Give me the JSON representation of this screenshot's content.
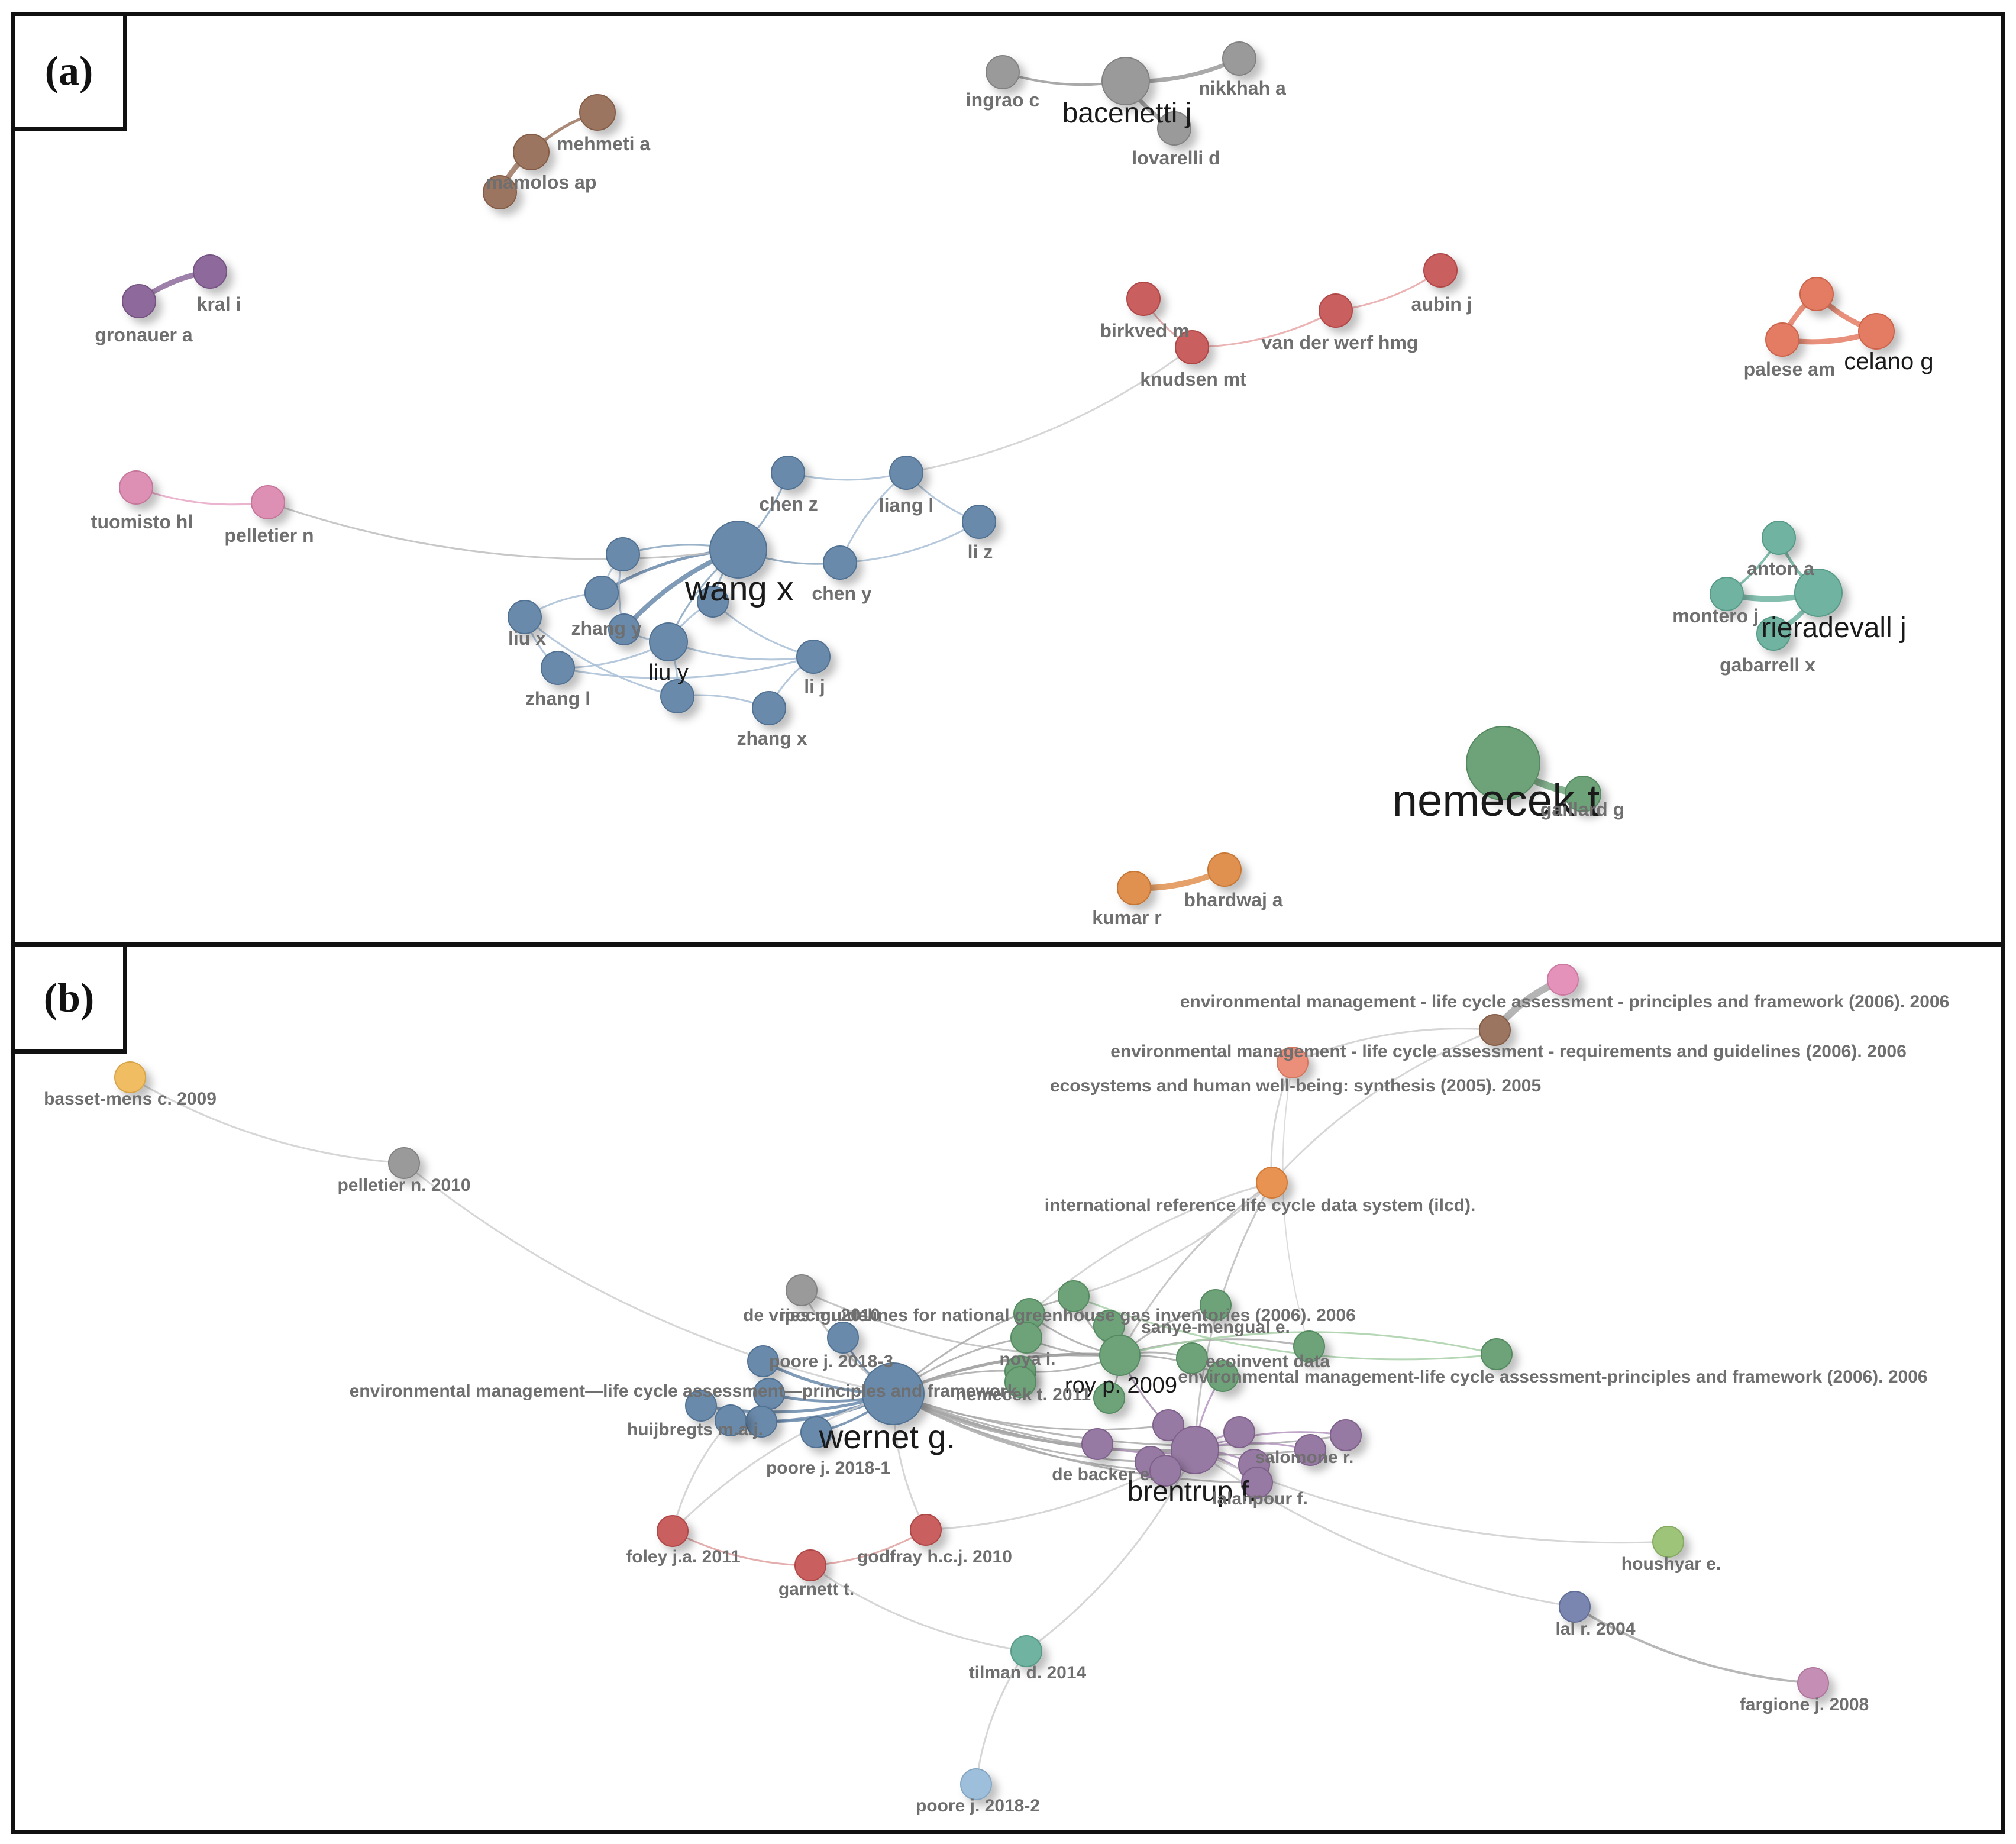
{
  "panels": [
    {
      "id": "a",
      "tag": "(a)",
      "nodes": [
        {
          "id": "ingrao",
          "label": "ingrao c",
          "color": "#9a9a9a"
        },
        {
          "id": "bacenetti",
          "label": "bacenetti j",
          "color": "#9a9a9a"
        },
        {
          "id": "nikkhah",
          "label": "nikkhah a",
          "color": "#9a9a9a"
        },
        {
          "id": "lovarelli",
          "label": "lovarelli d",
          "color": "#9a9a9a"
        },
        {
          "id": "mehmeti",
          "label": "mehmeti a",
          "color": "#9c7560"
        },
        {
          "id": "mamolos",
          "label": "mamolos ap",
          "color": "#9c7560"
        },
        {
          "id": "mamolos2",
          "label": "",
          "color": "#9c7560"
        },
        {
          "id": "kral",
          "label": "kral i",
          "color": "#8d6b9b"
        },
        {
          "id": "gronauer",
          "label": "gronauer a",
          "color": "#8d6b9b"
        },
        {
          "id": "birkved",
          "label": "birkved m",
          "color": "#c95f5f"
        },
        {
          "id": "aubin",
          "label": "aubin j",
          "color": "#c95f5f"
        },
        {
          "id": "vanderwerf",
          "label": "van der werf hmg",
          "color": "#c95f5f"
        },
        {
          "id": "knudsen",
          "label": "knudsen mt",
          "color": "#c95f5f"
        },
        {
          "id": "celano_a",
          "label": "",
          "color": "#e47c64"
        },
        {
          "id": "palese",
          "label": "palese am",
          "color": "#e47c64"
        },
        {
          "id": "celano",
          "label": "celano g",
          "color": "#e47c64"
        },
        {
          "id": "tuomisto",
          "label": "tuomisto hl",
          "color": "#de8fb4"
        },
        {
          "id": "pelletier",
          "label": "pelletier n",
          "color": "#de8fb4"
        },
        {
          "id": "chenz",
          "label": "chen z",
          "color": "#6a8aab"
        },
        {
          "id": "liangl",
          "label": "liang l",
          "color": "#6a8aab"
        },
        {
          "id": "liz",
          "label": "li z",
          "color": "#6a8aab"
        },
        {
          "id": "wangx",
          "label": "wang x",
          "color": "#6a8aab"
        },
        {
          "id": "cheny",
          "label": "chen y",
          "color": "#6a8aab"
        },
        {
          "id": "b1",
          "label": "",
          "color": "#6a8aab"
        },
        {
          "id": "b2",
          "label": "",
          "color": "#6a8aab"
        },
        {
          "id": "zhangy",
          "label": "zhang y",
          "color": "#6a8aab"
        },
        {
          "id": "b3",
          "label": "",
          "color": "#6a8aab"
        },
        {
          "id": "liux",
          "label": "liu x",
          "color": "#6a8aab"
        },
        {
          "id": "liuy",
          "label": "liu y",
          "color": "#6a8aab"
        },
        {
          "id": "lij",
          "label": "li j",
          "color": "#6a8aab"
        },
        {
          "id": "zhangl",
          "label": "zhang l",
          "color": "#6a8aab"
        },
        {
          "id": "b4",
          "label": "",
          "color": "#6a8aab"
        },
        {
          "id": "zhangx",
          "label": "zhang x",
          "color": "#6a8aab"
        },
        {
          "id": "anton",
          "label": "anton a",
          "color": "#6fb3a0"
        },
        {
          "id": "montero",
          "label": "montero j",
          "color": "#6fb3a0"
        },
        {
          "id": "rieradevall",
          "label": "rieradevall j",
          "color": "#6fb3a0"
        },
        {
          "id": "gabarrell",
          "label": "gabarrell x",
          "color": "#6fb3a0"
        },
        {
          "id": "nemecek",
          "label": "nemecek t",
          "color": "#6ea37a"
        },
        {
          "id": "gaillard",
          "label": "gaillard g",
          "color": "#6ea37a"
        },
        {
          "id": "bhardwaj",
          "label": "bhardwaj a",
          "color": "#e0904f"
        },
        {
          "id": "kumar",
          "label": "kumar r",
          "color": "#e0904f"
        }
      ]
    },
    {
      "id": "b",
      "tag": "(b)",
      "nodes": [
        {
          "id": "iso14040",
          "label": "environmental management - life cycle assessment - principles and framework (2006). 2006",
          "color": "#e592bb"
        },
        {
          "id": "iso14044",
          "label": "environmental management - life cycle assessment - requirements and guidelines (2006). 2006",
          "color": "#9c7560"
        },
        {
          "id": "mea",
          "label": "ecosystems and human well-being: synthesis (2005). 2005",
          "color": "#ec8f7a"
        },
        {
          "id": "bassetmens",
          "label": "basset-mens c. 2009",
          "color": "#f0bd63"
        },
        {
          "id": "pelletier2010",
          "label": "pelletier n. 2010",
          "color": "#9a9a9a"
        },
        {
          "id": "ilcd",
          "label": "international reference life cycle data system (ilcd).",
          "color": "#e89351"
        },
        {
          "id": "devries",
          "label": "de vries m. 2010",
          "color": "#9a9a9a"
        },
        {
          "id": "ipcc",
          "label": "ipcc guidelines for national greenhouse gas inventories (2006). 2006",
          "color": "#6ea37a"
        },
        {
          "id": "sanye",
          "label": "sanye-mengual e.",
          "color": "#6ea37a"
        },
        {
          "id": "g1",
          "label": "",
          "color": "#6ea37a"
        },
        {
          "id": "g2",
          "label": "",
          "color": "#6ea37a"
        },
        {
          "id": "g3",
          "label": "",
          "color": "#6ea37a"
        },
        {
          "id": "noya",
          "label": "noya i.",
          "color": "#6ea37a"
        },
        {
          "id": "ecoinvent",
          "label": "ecoinvent data",
          "color": "#6ea37a"
        },
        {
          "id": "g4",
          "label": "",
          "color": "#6ea37a"
        },
        {
          "id": "roy",
          "label": "roy p. 2009",
          "color": "#6ea37a"
        },
        {
          "id": "g5",
          "label": "",
          "color": "#6ea37a"
        },
        {
          "id": "g6",
          "label": "",
          "color": "#6ea37a"
        },
        {
          "id": "g7",
          "label": "",
          "color": "#6ea37a"
        },
        {
          "id": "envmgmt2",
          "label": "environmental management-life cycle assessment-principles and framework (2006). 2006",
          "color": "#6ea37a"
        },
        {
          "id": "poore3",
          "label": "poore j. 2018-3",
          "color": "#6a8aab"
        },
        {
          "id": "bl1",
          "label": "",
          "color": "#6a8aab"
        },
        {
          "id": "bl2",
          "label": "",
          "color": "#6a8aab"
        },
        {
          "id": "envmgmt1",
          "label": "environmental management—life cycle assessment—principles and framework",
          "color": "#6a8aab"
        },
        {
          "id": "wernet",
          "label": "wernet g.",
          "color": "#6a8aab"
        },
        {
          "id": "huijbregts",
          "label": "huijbregts m.a.j.",
          "color": "#6a8aab"
        },
        {
          "id": "bl3",
          "label": "",
          "color": "#6a8aab"
        },
        {
          "id": "poore1",
          "label": "poore j. 2018-1",
          "color": "#6a8aab"
        },
        {
          "id": "nemecek2",
          "label": "nemecek t. 2011",
          "color": "#6ea37a"
        },
        {
          "id": "p1",
          "label": "",
          "color": "#977aa3"
        },
        {
          "id": "p2",
          "label": "",
          "color": "#977aa3"
        },
        {
          "id": "p3",
          "label": "",
          "color": "#977aa3"
        },
        {
          "id": "p4",
          "label": "",
          "color": "#977aa3"
        },
        {
          "id": "brentrup",
          "label": "brentrup f.",
          "color": "#977aa3"
        },
        {
          "id": "debacker",
          "label": "de backer e.",
          "color": "#977aa3"
        },
        {
          "id": "p5",
          "label": "",
          "color": "#977aa3"
        },
        {
          "id": "lalanpour",
          "label": "lalanpour f.",
          "color": "#977aa3"
        },
        {
          "id": "salomone",
          "label": "salomone r.",
          "color": "#977aa3"
        },
        {
          "id": "p6",
          "label": "",
          "color": "#977aa3"
        },
        {
          "id": "foley",
          "label": "foley j.a. 2011",
          "color": "#c95f5f"
        },
        {
          "id": "godfray",
          "label": "godfray h.c.j. 2010",
          "color": "#c95f5f"
        },
        {
          "id": "garnett",
          "label": "garnett t.",
          "color": "#c95f5f"
        },
        {
          "id": "tilman",
          "label": "tilman d. 2014",
          "color": "#6fb3a0"
        },
        {
          "id": "poore2",
          "label": "poore j. 2018-2",
          "color": "#9ebfdb"
        },
        {
          "id": "houshyar",
          "label": "houshyar e.",
          "color": "#9ec47a"
        },
        {
          "id": "lal",
          "label": "lal r. 2004",
          "color": "#7a86b0"
        },
        {
          "id": "fargione",
          "label": "fargione j. 2008",
          "color": "#c58fb5"
        }
      ]
    }
  ]
}
